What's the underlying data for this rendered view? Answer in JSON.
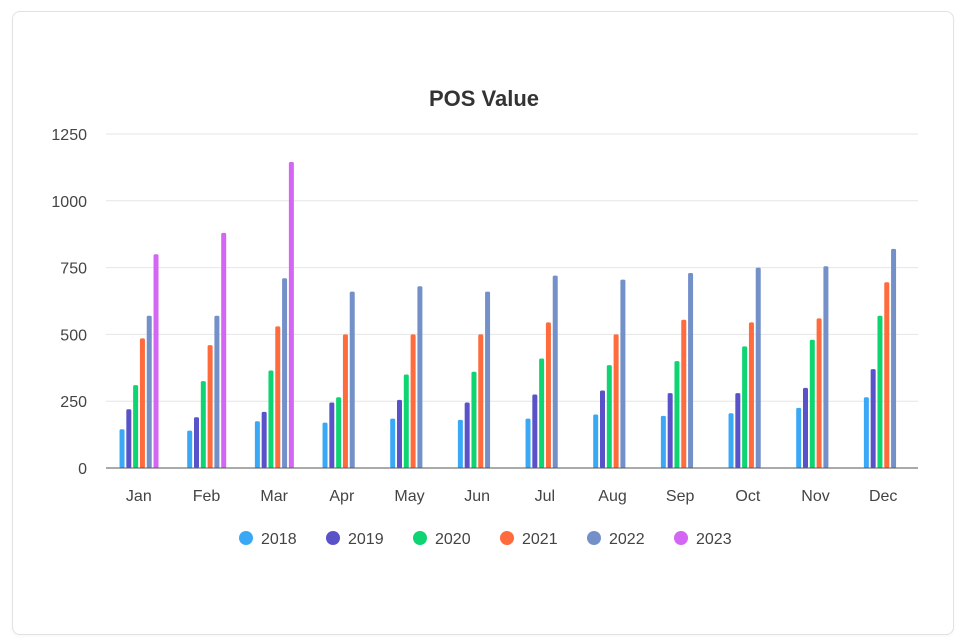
{
  "chart_data": {
    "type": "bar",
    "title": "POS Value",
    "xlabel": "",
    "ylabel": "",
    "categories": [
      "Jan",
      "Feb",
      "Mar",
      "Apr",
      "May",
      "Jun",
      "Jul",
      "Aug",
      "Sep",
      "Oct",
      "Nov",
      "Dec"
    ],
    "ylim": [
      0,
      1250
    ],
    "yticks": [
      0,
      250,
      500,
      750,
      1000,
      1250
    ],
    "grid": true,
    "legend_position": "bottom",
    "series": [
      {
        "name": "2018",
        "color": "#3aa8f5",
        "values": [
          145,
          140,
          175,
          170,
          185,
          180,
          185,
          200,
          195,
          205,
          225,
          265
        ]
      },
      {
        "name": "2019",
        "color": "#5a52c9",
        "values": [
          220,
          190,
          210,
          245,
          255,
          245,
          275,
          290,
          280,
          280,
          300,
          370
        ]
      },
      {
        "name": "2020",
        "color": "#0ed472",
        "values": [
          310,
          325,
          365,
          265,
          350,
          360,
          410,
          385,
          400,
          455,
          480,
          570
        ]
      },
      {
        "name": "2021",
        "color": "#ff6b3d",
        "values": [
          485,
          460,
          530,
          500,
          500,
          500,
          545,
          500,
          555,
          545,
          560,
          695
        ]
      },
      {
        "name": "2022",
        "color": "#7391c8",
        "values": [
          570,
          570,
          710,
          660,
          680,
          660,
          720,
          705,
          730,
          750,
          755,
          820
        ]
      },
      {
        "name": "2023",
        "color": "#d366f2",
        "values": [
          800,
          880,
          1145,
          null,
          null,
          null,
          null,
          null,
          null,
          null,
          null,
          null
        ]
      }
    ]
  }
}
